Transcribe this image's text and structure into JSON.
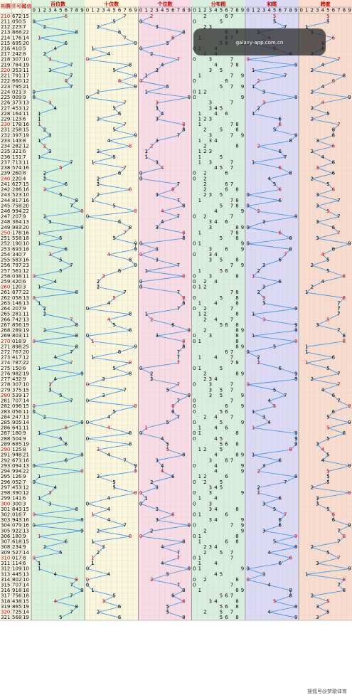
{
  "header": {
    "period": "期数",
    "number": "开奖号码",
    "sum": "和值",
    "groups": [
      "百位数",
      "十位数",
      "个位数",
      "分布图",
      "和尾",
      "跨度"
    ],
    "digits": [
      "0",
      "1",
      "2",
      "3",
      "4",
      "5",
      "6",
      "7",
      "8",
      "9"
    ]
  },
  "table": {
    "rows": [
      [
        "210",
        "672",
        15
      ],
      [
        "211",
        "050",
        5
      ],
      [
        "212",
        "223",
        7
      ],
      [
        "213",
        "868",
        22
      ],
      [
        "214",
        "176",
        14
      ],
      [
        "215",
        "695",
        20
      ],
      [
        "216",
        "410",
        5
      ],
      [
        "217",
        "242",
        8
      ],
      [
        "218",
        "307",
        10
      ],
      [
        "219",
        "784",
        19
      ],
      [
        "220",
        "353",
        11
      ],
      [
        "221",
        "791",
        17
      ],
      [
        "222",
        "660",
        12
      ],
      [
        "223",
        "795",
        21
      ],
      [
        "224",
        "021",
        3
      ],
      [
        "225",
        "009",
        9
      ],
      [
        "226",
        "373",
        13
      ],
      [
        "227",
        "453",
        12
      ],
      [
        "228",
        "164",
        11
      ],
      [
        "229",
        "123",
        6
      ],
      [
        "230",
        "178",
        16
      ],
      [
        "231",
        "258",
        15
      ],
      [
        "232",
        "397",
        19
      ],
      [
        "233",
        "143",
        8
      ],
      [
        "234",
        "282",
        12
      ],
      [
        "235",
        "321",
        6
      ],
      [
        "236",
        "151",
        7
      ],
      [
        "237",
        "713",
        11
      ],
      [
        "238",
        "574",
        16
      ],
      [
        "239",
        "260",
        8
      ],
      [
        "240",
        "220",
        4
      ],
      [
        "241",
        "627",
        15
      ],
      [
        "242",
        "286",
        16
      ],
      [
        "243",
        "523",
        10
      ],
      [
        "244",
        "817",
        16
      ],
      [
        "245",
        "758",
        20
      ],
      [
        "246",
        "994",
        22
      ],
      [
        "247",
        "207",
        9
      ],
      [
        "248",
        "364",
        13
      ],
      [
        "249",
        "983",
        20
      ],
      [
        "250",
        "178",
        16
      ],
      [
        "251",
        "558",
        18
      ],
      [
        "252",
        "190",
        10
      ],
      [
        "253",
        "693",
        18
      ],
      [
        "254",
        "340",
        7
      ],
      [
        "255",
        "583",
        16
      ],
      [
        "256",
        "797",
        23
      ],
      [
        "257",
        "561",
        12
      ],
      [
        "258",
        "038",
        11
      ],
      [
        "259",
        "420",
        6
      ],
      [
        "260",
        "120",
        3
      ],
      [
        "261",
        "877",
        22
      ],
      [
        "262",
        "058",
        13
      ],
      [
        "263",
        "148",
        13
      ],
      [
        "264",
        "207",
        9
      ],
      [
        "265",
        "281",
        11
      ],
      [
        "266",
        "742",
        13
      ],
      [
        "267",
        "856",
        19
      ],
      [
        "268",
        "289",
        19
      ],
      [
        "269",
        "803",
        11
      ],
      [
        "270",
        "018",
        9
      ],
      [
        "271",
        "898",
        25
      ],
      [
        "272",
        "767",
        20
      ],
      [
        "273",
        "417",
        12
      ],
      [
        "274",
        "787",
        22
      ],
      [
        "275",
        "150",
        6
      ],
      [
        "276",
        "982",
        19
      ],
      [
        "277",
        "432",
        9
      ],
      [
        "278",
        "307",
        10
      ],
      [
        "279",
        "375",
        15
      ],
      [
        "280",
        "539",
        17
      ],
      [
        "281",
        "707",
        14
      ],
      [
        "282",
        "096",
        15
      ],
      [
        "283",
        "056",
        11
      ],
      [
        "284",
        "247",
        13
      ],
      [
        "285",
        "905",
        14
      ],
      [
        "286",
        "641",
        11
      ],
      [
        "287",
        "180",
        9
      ],
      [
        "288",
        "504",
        9
      ],
      [
        "289",
        "685",
        19
      ],
      [
        "290",
        "125",
        8
      ],
      [
        "291",
        "948",
        21
      ],
      [
        "292",
        "673",
        16
      ],
      [
        "293",
        "094",
        13
      ],
      [
        "294",
        "994",
        22
      ],
      [
        "295",
        "126",
        9
      ],
      [
        "296",
        "052",
        7
      ],
      [
        "297",
        "453",
        12
      ],
      [
        "298",
        "390",
        12
      ],
      [
        "299",
        "141",
        6
      ],
      [
        "300",
        "300",
        3
      ],
      [
        "301",
        "843",
        15
      ],
      [
        "302",
        "016",
        7
      ],
      [
        "303",
        "943",
        16
      ],
      [
        "304",
        "079",
        16
      ],
      [
        "305",
        "922",
        13
      ],
      [
        "306",
        "180",
        9
      ],
      [
        "307",
        "618",
        15
      ],
      [
        "308",
        "234",
        9
      ],
      [
        "309",
        "527",
        14
      ],
      [
        "310",
        "017",
        8
      ],
      [
        "311",
        "114",
        6
      ],
      [
        "312",
        "109",
        10
      ],
      [
        "313",
        "445",
        13
      ],
      [
        "314",
        "802",
        10
      ],
      [
        "315",
        "707",
        14
      ],
      [
        "316",
        "918",
        18
      ],
      [
        "317",
        "756",
        18
      ],
      [
        "318",
        "438",
        15
      ],
      [
        "319",
        "865",
        19
      ],
      [
        "320",
        "725",
        14
      ],
      [
        "321",
        "568",
        19
      ]
    ]
  },
  "watermark": "galaxy-app.com.cn",
  "footer": "搜狐号@梦歌体育"
}
